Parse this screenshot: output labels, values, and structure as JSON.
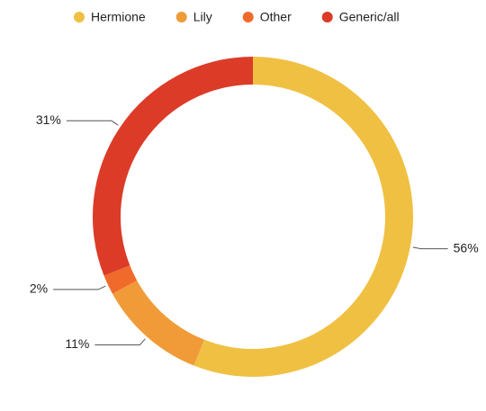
{
  "chart_data": {
    "type": "donut",
    "categories": [
      "Hermione",
      "Lily",
      "Other",
      "Generic/all"
    ],
    "values": [
      56,
      11,
      2,
      31
    ],
    "value_labels": [
      "56%",
      "11%",
      "2%",
      "31%"
    ],
    "colors": [
      "#f0c043",
      "#f09b38",
      "#f06b2b",
      "#dc3b28"
    ],
    "legend": "top"
  }
}
